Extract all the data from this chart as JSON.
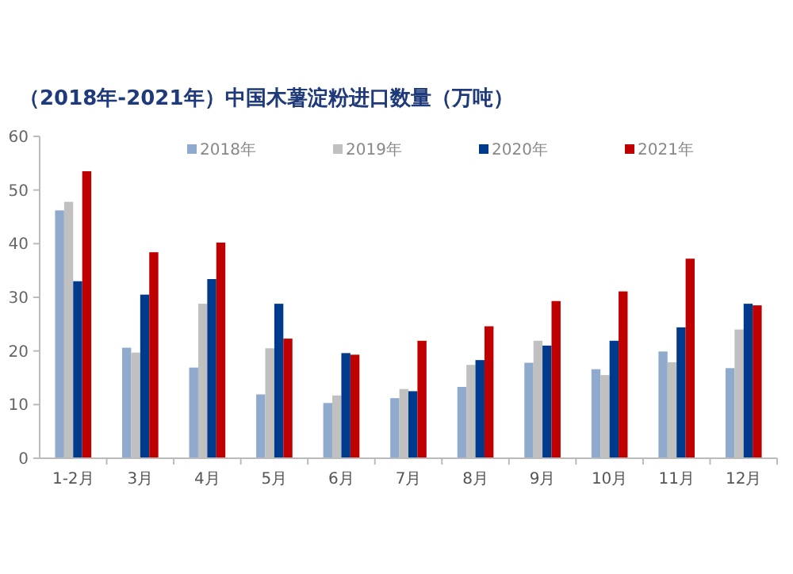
{
  "chart_data": {
    "type": "bar",
    "title": "（2018年-2021年）中国木薯淀粉进口数量（万吨）",
    "categories": [
      "1-2月",
      "3月",
      "4月",
      "5月",
      "6月",
      "7月",
      "8月",
      "9月",
      "10月",
      "11月",
      "12月"
    ],
    "series": [
      {
        "name": "2018年",
        "color": "#8faacc",
        "values": [
          46.2,
          20.6,
          16.9,
          11.9,
          10.3,
          11.2,
          13.3,
          17.8,
          16.6,
          19.9,
          16.8
        ]
      },
      {
        "name": "2019年",
        "color": "#c0c0c0",
        "values": [
          47.8,
          19.7,
          28.8,
          20.5,
          11.7,
          12.9,
          17.4,
          21.9,
          15.5,
          17.9,
          24
        ]
      },
      {
        "name": "2020年",
        "color": "#003a8c",
        "values": [
          33,
          30.5,
          33.4,
          28.8,
          19.6,
          12.5,
          18.3,
          21,
          21.9,
          24.4,
          28.8
        ]
      },
      {
        "name": "2021年",
        "color": "#c00000",
        "values": [
          53.5,
          38.4,
          40.2,
          22.3,
          19.3,
          21.9,
          24.6,
          29.3,
          31.1,
          37.2,
          28.5
        ]
      }
    ],
    "ylim": [
      0,
      60
    ],
    "yticks": [
      0,
      10,
      20,
      30,
      40,
      50,
      60
    ],
    "legend": "top"
  }
}
